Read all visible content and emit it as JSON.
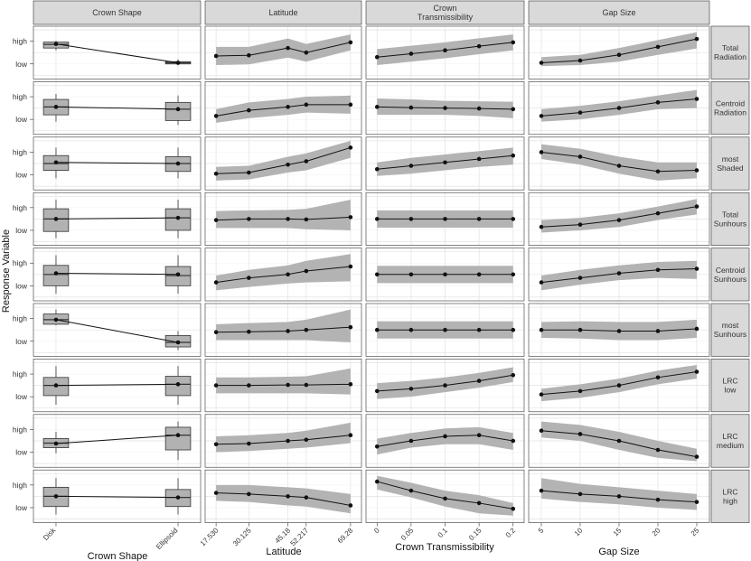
{
  "chart_data": {
    "type": "line",
    "ylabel": "Response Variable",
    "y_tick_labels": [
      "high",
      "low"
    ],
    "columns": [
      {
        "strip": "Crown Shape",
        "xlabel": "Crown Shape",
        "kind": "box",
        "categories": [
          "Disk",
          "Ellipsoid"
        ]
      },
      {
        "strip": "Latitude",
        "xlabel": "Latitude",
        "kind": "line",
        "x": [
          17.53,
          30.125,
          45.18,
          52.217,
          69.28
        ],
        "tick_labels": [
          "17.530",
          "30.125",
          "45.18",
          "52.217",
          "69.28"
        ]
      },
      {
        "strip": "Crown Transmissibility",
        "xlabel": "Crown Transmissibility",
        "kind": "line",
        "x": [
          0,
          0.05,
          0.1,
          0.15,
          0.2
        ],
        "tick_labels": [
          "0",
          "0.05",
          "0.1",
          "0.15",
          "0.2"
        ]
      },
      {
        "strip": "Gap Size",
        "xlabel": "Gap Size",
        "kind": "line",
        "x": [
          5,
          10,
          15,
          20,
          25
        ],
        "tick_labels": [
          "5",
          "10",
          "15",
          "20",
          "25"
        ]
      }
    ],
    "rows": [
      {
        "label": "Total Radiation",
        "shape": [
          {
            "q1": 0.2,
            "med": 0.36,
            "q3": 0.46,
            "lw": 0.1,
            "uw": 0.52,
            "mean": 0.38
          },
          {
            "q1": -0.5,
            "med": -0.45,
            "q3": -0.4,
            "lw": -0.56,
            "uw": -0.3,
            "mean": -0.45
          }
        ],
        "latitude": {
          "y": [
            -0.15,
            -0.12,
            0.2,
            0.0,
            0.45
          ],
          "lo": [
            -0.55,
            -0.52,
            -0.22,
            -0.4,
            0.1
          ],
          "hi": [
            0.25,
            0.25,
            0.62,
            0.38,
            0.8
          ]
        },
        "trans": {
          "y": [
            -0.2,
            -0.05,
            0.1,
            0.28,
            0.45
          ],
          "lo": [
            -0.55,
            -0.4,
            -0.25,
            -0.07,
            0.1
          ],
          "hi": [
            0.15,
            0.3,
            0.45,
            0.63,
            0.8
          ]
        },
        "gap": {
          "y": [
            -0.45,
            -0.35,
            -0.1,
            0.25,
            0.6
          ],
          "lo": [
            -0.6,
            -0.55,
            -0.4,
            -0.1,
            0.18
          ],
          "hi": [
            -0.2,
            -0.1,
            0.2,
            0.55,
            0.9
          ]
        }
      },
      {
        "label": "Centroid Radiation",
        "shape": [
          {
            "q1": -0.3,
            "med": 0.05,
            "q3": 0.38,
            "lw": -0.6,
            "uw": 0.62,
            "mean": 0.05
          },
          {
            "q1": -0.55,
            "med": -0.05,
            "q3": 0.25,
            "lw": -0.75,
            "uw": 0.55,
            "mean": -0.05
          }
        ],
        "latitude": {
          "y": [
            -0.35,
            -0.1,
            0.05,
            0.15,
            0.15
          ],
          "lo": [
            -0.65,
            -0.45,
            -0.3,
            -0.2,
            -0.25
          ],
          "hi": [
            -0.05,
            0.25,
            0.4,
            0.5,
            0.55
          ]
        },
        "trans": {
          "y": [
            0.05,
            0.02,
            0.0,
            -0.02,
            -0.05
          ],
          "lo": [
            -0.3,
            -0.3,
            -0.3,
            -0.35,
            -0.45
          ],
          "hi": [
            0.42,
            0.38,
            0.32,
            0.3,
            0.28
          ]
        },
        "gap": {
          "y": [
            -0.35,
            -0.2,
            0.0,
            0.25,
            0.4
          ],
          "lo": [
            -0.6,
            -0.5,
            -0.3,
            -0.05,
            0.0
          ],
          "hi": [
            -0.05,
            0.1,
            0.3,
            0.55,
            0.8
          ]
        }
      },
      {
        "label": "most Shaded",
        "shape": [
          {
            "q1": -0.3,
            "med": 0.0,
            "q3": 0.35,
            "lw": -0.65,
            "uw": 0.7,
            "mean": 0.05
          },
          {
            "q1": -0.35,
            "med": 0.0,
            "q3": 0.3,
            "lw": -0.65,
            "uw": 0.7,
            "mean": 0.0
          }
        ],
        "latitude": {
          "y": [
            -0.45,
            -0.4,
            -0.05,
            0.1,
            0.7
          ],
          "lo": [
            -0.75,
            -0.7,
            -0.4,
            -0.3,
            0.25
          ],
          "hi": [
            -0.15,
            -0.1,
            0.3,
            0.45,
            1.0
          ]
        },
        "trans": {
          "y": [
            -0.25,
            -0.1,
            0.05,
            0.2,
            0.35
          ],
          "lo": [
            -0.55,
            -0.45,
            -0.3,
            -0.15,
            -0.05
          ],
          "hi": [
            0.05,
            0.25,
            0.4,
            0.55,
            0.7
          ]
        },
        "gap": {
          "y": [
            0.5,
            0.3,
            -0.1,
            -0.35,
            -0.3
          ],
          "lo": [
            0.2,
            -0.05,
            -0.45,
            -0.75,
            -0.65
          ],
          "hi": [
            0.85,
            0.65,
            0.3,
            0.05,
            0.05
          ]
        }
      },
      {
        "label": "Total Sunhours",
        "shape": [
          {
            "q1": -0.55,
            "med": 0.0,
            "q3": 0.45,
            "lw": -0.85,
            "uw": 0.85,
            "mean": 0.0
          },
          {
            "q1": -0.5,
            "med": 0.05,
            "q3": 0.45,
            "lw": -0.85,
            "uw": 0.85,
            "mean": 0.05
          }
        ],
        "latitude": {
          "y": [
            -0.05,
            0.0,
            0.0,
            -0.02,
            0.08
          ],
          "lo": [
            -0.4,
            -0.4,
            -0.4,
            -0.45,
            -0.5
          ],
          "hi": [
            0.35,
            0.38,
            0.4,
            0.45,
            0.85
          ]
        },
        "trans": {
          "y": [
            0.0,
            0.0,
            0.0,
            0.0,
            0.0
          ],
          "lo": [
            -0.38,
            -0.38,
            -0.38,
            -0.38,
            -0.38
          ],
          "hi": [
            0.38,
            0.38,
            0.38,
            0.38,
            0.38
          ]
        },
        "gap": {
          "y": [
            -0.35,
            -0.25,
            -0.05,
            0.25,
            0.55
          ],
          "lo": [
            -0.6,
            -0.5,
            -0.35,
            -0.05,
            0.2
          ],
          "hi": [
            -0.05,
            0.05,
            0.25,
            0.55,
            0.88
          ]
        }
      },
      {
        "label": "Centroid Sunhours",
        "shape": [
          {
            "q1": -0.5,
            "med": 0.0,
            "q3": 0.4,
            "lw": -0.85,
            "uw": 0.85,
            "mean": 0.05
          },
          {
            "q1": -0.5,
            "med": -0.05,
            "q3": 0.35,
            "lw": -0.85,
            "uw": 0.85,
            "mean": 0.0
          }
        ],
        "latitude": {
          "y": [
            -0.35,
            -0.15,
            0.0,
            0.15,
            0.35
          ],
          "lo": [
            -0.7,
            -0.55,
            -0.4,
            -0.35,
            -0.3
          ],
          "hi": [
            -0.05,
            0.2,
            0.4,
            0.6,
            0.9
          ]
        },
        "trans": {
          "y": [
            0.0,
            0.0,
            0.0,
            0.0,
            0.0
          ],
          "lo": [
            -0.38,
            -0.38,
            -0.38,
            -0.38,
            -0.38
          ],
          "hi": [
            0.38,
            0.38,
            0.38,
            0.38,
            0.38
          ]
        },
        "gap": {
          "y": [
            -0.35,
            -0.15,
            0.05,
            0.2,
            0.25
          ],
          "lo": [
            -0.7,
            -0.45,
            -0.25,
            -0.15,
            -0.2
          ],
          "hi": [
            -0.05,
            0.2,
            0.4,
            0.55,
            0.6
          ]
        }
      },
      {
        "label": "most Sunhours",
        "shape": [
          {
            "q1": 0.25,
            "med": 0.45,
            "q3": 0.7,
            "lw": 0.2,
            "uw": 0.9,
            "mean": 0.45
          },
          {
            "q1": -0.75,
            "med": -0.55,
            "q3": -0.25,
            "lw": -0.9,
            "uw": -0.05,
            "mean": -0.55
          }
        ],
        "latitude": {
          "y": [
            -0.1,
            -0.08,
            -0.05,
            0.0,
            0.12
          ],
          "lo": [
            -0.45,
            -0.45,
            -0.45,
            -0.45,
            -0.55
          ],
          "hi": [
            0.25,
            0.3,
            0.35,
            0.45,
            0.9
          ]
        },
        "trans": {
          "y": [
            0.0,
            0.0,
            0.0,
            0.0,
            0.0
          ],
          "lo": [
            -0.38,
            -0.38,
            -0.38,
            -0.38,
            -0.38
          ],
          "hi": [
            0.38,
            0.38,
            0.38,
            0.38,
            0.38
          ]
        },
        "gap": {
          "y": [
            0.0,
            0.0,
            -0.05,
            -0.05,
            0.05
          ],
          "lo": [
            -0.35,
            -0.38,
            -0.45,
            -0.45,
            -0.35
          ],
          "hi": [
            0.35,
            0.38,
            0.35,
            0.35,
            0.45
          ]
        }
      },
      {
        "label": "LRC low",
        "shape": [
          {
            "q1": -0.45,
            "med": 0.0,
            "q3": 0.35,
            "lw": -0.85,
            "uw": 0.85,
            "mean": 0.0
          },
          {
            "q1": -0.45,
            "med": 0.05,
            "q3": 0.4,
            "lw": -0.85,
            "uw": 0.85,
            "mean": 0.05
          }
        ],
        "latitude": {
          "y": [
            0.0,
            0.0,
            0.02,
            0.02,
            0.05
          ],
          "lo": [
            -0.35,
            -0.35,
            -0.35,
            -0.35,
            -0.4
          ],
          "hi": [
            0.35,
            0.35,
            0.38,
            0.4,
            0.75
          ]
        },
        "trans": {
          "y": [
            -0.25,
            -0.15,
            0.0,
            0.2,
            0.45
          ],
          "lo": [
            -0.6,
            -0.5,
            -0.3,
            -0.1,
            0.15
          ],
          "hi": [
            0.1,
            0.2,
            0.35,
            0.55,
            0.8
          ]
        },
        "gap": {
          "y": [
            -0.4,
            -0.25,
            0.0,
            0.35,
            0.6
          ],
          "lo": [
            -0.7,
            -0.55,
            -0.3,
            0.05,
            0.3
          ],
          "hi": [
            -0.15,
            0.05,
            0.3,
            0.65,
            0.9
          ]
        }
      },
      {
        "label": "LRC medium",
        "shape": [
          {
            "q1": -0.3,
            "med": -0.1,
            "q3": 0.1,
            "lw": -0.55,
            "uw": 0.4,
            "mean": -0.12
          },
          {
            "q1": -0.4,
            "med": 0.25,
            "q3": 0.6,
            "lw": -0.85,
            "uw": 0.85,
            "mean": 0.25
          }
        ],
        "latitude": {
          "y": [
            -0.15,
            -0.12,
            0.0,
            0.05,
            0.25
          ],
          "lo": [
            -0.5,
            -0.45,
            -0.35,
            -0.3,
            -0.1
          ],
          "hi": [
            0.2,
            0.25,
            0.35,
            0.45,
            0.8
          ]
        },
        "trans": {
          "y": [
            -0.25,
            0.0,
            0.2,
            0.25,
            0.0
          ],
          "lo": [
            -0.6,
            -0.3,
            -0.15,
            -0.15,
            -0.4
          ],
          "hi": [
            0.1,
            0.35,
            0.55,
            0.6,
            0.35
          ]
        },
        "gap": {
          "y": [
            0.45,
            0.3,
            0.0,
            -0.4,
            -0.7
          ],
          "lo": [
            0.15,
            0.0,
            -0.4,
            -0.75,
            -0.9
          ],
          "hi": [
            0.85,
            0.7,
            0.4,
            0.0,
            -0.35
          ]
        }
      },
      {
        "label": "LRC high",
        "shape": [
          {
            "q1": -0.45,
            "med": 0.0,
            "q3": 0.4,
            "lw": -0.8,
            "uw": 0.8,
            "mean": 0.0
          },
          {
            "q1": -0.45,
            "med": -0.05,
            "q3": 0.3,
            "lw": -0.8,
            "uw": 0.8,
            "mean": -0.05
          }
        ],
        "latitude": {
          "y": [
            0.15,
            0.1,
            0.0,
            -0.05,
            -0.4
          ],
          "lo": [
            -0.2,
            -0.25,
            -0.4,
            -0.45,
            -0.75
          ],
          "hi": [
            0.5,
            0.5,
            0.4,
            0.35,
            0.1
          ]
        },
        "trans": {
          "y": [
            0.65,
            0.25,
            -0.1,
            -0.3,
            -0.55
          ],
          "lo": [
            0.3,
            -0.05,
            -0.45,
            -0.75,
            -0.85
          ],
          "hi": [
            0.9,
            0.6,
            0.25,
            0.05,
            -0.3
          ]
        },
        "gap": {
          "y": [
            0.25,
            0.1,
            0.0,
            -0.15,
            -0.25
          ],
          "lo": [
            -0.1,
            -0.25,
            -0.35,
            -0.5,
            -0.6
          ],
          "hi": [
            0.8,
            0.55,
            0.4,
            0.25,
            0.1
          ]
        }
      }
    ]
  }
}
